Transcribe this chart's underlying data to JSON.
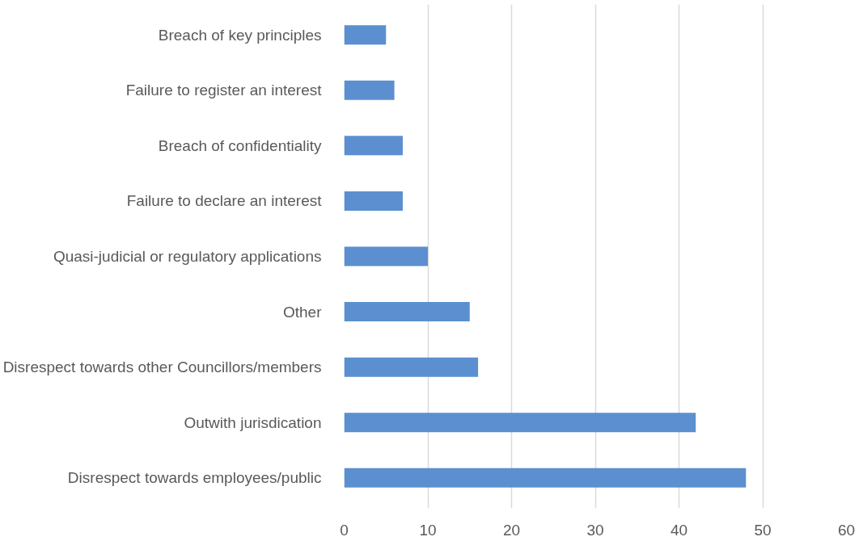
{
  "chart_data": {
    "type": "bar",
    "orientation": "horizontal",
    "categories": [
      "Breach of key principles",
      "Failure to register an interest",
      "Breach of confidentiality",
      "Failure to declare an interest",
      "Quasi-judicial or regulatory applications",
      "Other",
      "Disrespect towards other Councillors/members",
      "Outwith jurisdication",
      "Disrespect towards employees/public"
    ],
    "values": [
      5,
      6,
      7,
      7,
      10,
      15,
      16,
      42,
      48
    ],
    "color": "#5b8fd0",
    "xlim": [
      0,
      60
    ],
    "xticks": [
      0,
      10,
      20,
      30,
      40,
      50,
      60
    ],
    "grid": "x"
  }
}
